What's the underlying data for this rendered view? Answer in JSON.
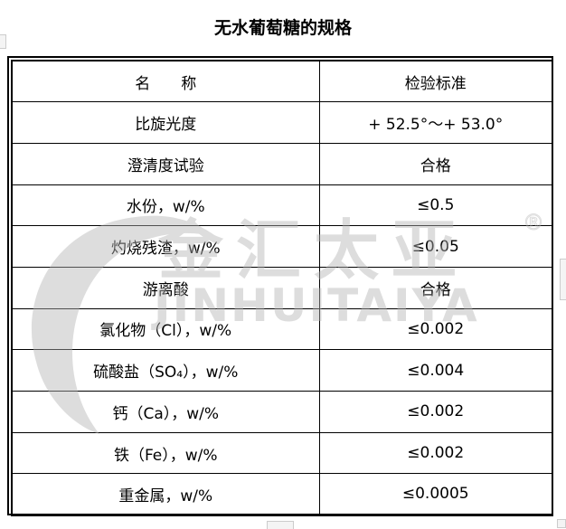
{
  "document": {
    "title": "无水葡萄糖的规格"
  },
  "table": {
    "headers": [
      "名　　称",
      "检验标准"
    ],
    "rows": [
      {
        "name": "比旋光度",
        "standard": "+ 52.5°～+ 53.0°"
      },
      {
        "name": "澄清度试验",
        "standard": "合格"
      },
      {
        "name": "水份，w/%",
        "standard": "≤0.5"
      },
      {
        "name": "灼烧残渣，w/%",
        "standard": "≤0.05"
      },
      {
        "name": "游离酸",
        "standard": "合格"
      },
      {
        "name": "氯化物（Cl），w/%",
        "standard": "≤0.002"
      },
      {
        "name": "硫酸盐（SO₄），w/%",
        "standard": "≤0.004"
      },
      {
        "name": "钙（Ca），w/%",
        "standard": "≤0.002"
      },
      {
        "name": "铁（Fe），w/%",
        "standard": "≤0.002"
      },
      {
        "name": "重金属，w/%",
        "standard": "≤0.0005"
      }
    ]
  },
  "watermark": {
    "chinese": "金汇太亚",
    "latin": "JINHUITAIYA",
    "mark": "®",
    "color": "#b4b4b4"
  }
}
